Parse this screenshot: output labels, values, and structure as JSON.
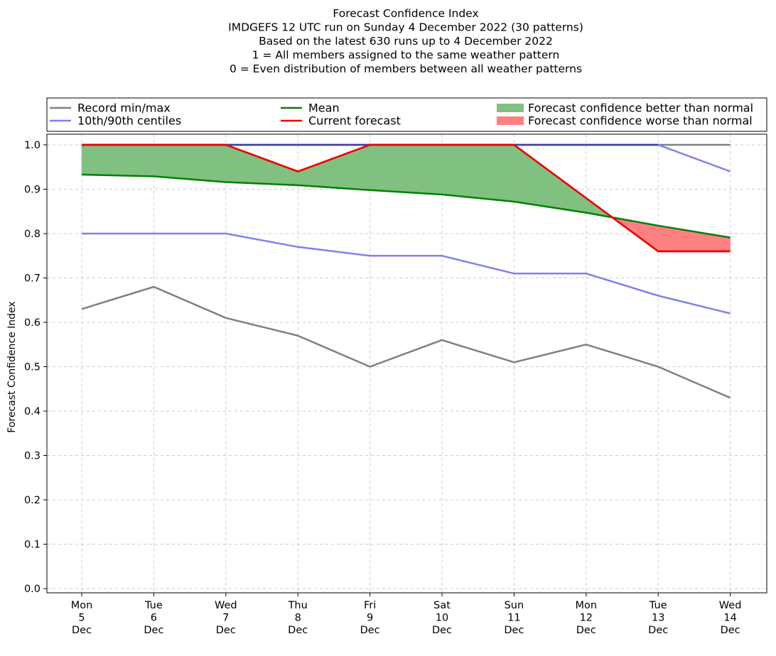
{
  "chart_data": {
    "type": "line",
    "title_lines": [
      "Forecast Confidence Index",
      "IMDGEFS 12 UTC run on Sunday 4 December 2022 (30 patterns)",
      "Based on the latest 630 runs up to 4 December 2022",
      "1 = All members assigned to the same weather pattern",
      "0 = Even distribution of members between all weather patterns"
    ],
    "ylabel": "Forecast Confidence Index",
    "ylim": [
      0,
      1
    ],
    "yticks": [
      "0.0",
      "0.1",
      "0.2",
      "0.3",
      "0.4",
      "0.5",
      "0.6",
      "0.7",
      "0.8",
      "0.9",
      "1.0"
    ],
    "categories": [
      [
        "Mon",
        "5",
        "Dec"
      ],
      [
        "Tue",
        "6",
        "Dec"
      ],
      [
        "Wed",
        "7",
        "Dec"
      ],
      [
        "Thu",
        "8",
        "Dec"
      ],
      [
        "Fri",
        "9",
        "Dec"
      ],
      [
        "Sat",
        "10",
        "Dec"
      ],
      [
        "Sun",
        "11",
        "Dec"
      ],
      [
        "Mon",
        "12",
        "Dec"
      ],
      [
        "Tue",
        "13",
        "Dec"
      ],
      [
        "Wed",
        "14",
        "Dec"
      ]
    ],
    "grid": true,
    "legend": {
      "placement": "top",
      "entries": [
        {
          "label": "Record min/max",
          "color": "#808080",
          "kind": "line"
        },
        {
          "label": "10th/90th centiles",
          "color": "#8080f0",
          "kind": "line"
        },
        {
          "label": "Mean",
          "color": "#008000",
          "kind": "line"
        },
        {
          "label": "Current forecast",
          "color": "#ee0000",
          "kind": "line"
        },
        {
          "label": "Forecast confidence better than normal",
          "color": "#80c080",
          "kind": "patch"
        },
        {
          "label": "Forecast confidence worse than normal",
          "color": "#ff8080",
          "kind": "patch"
        }
      ]
    },
    "series": [
      {
        "name": "Record min/max",
        "role": "record_max",
        "color": "#808080",
        "values": [
          1.0,
          1.0,
          1.0,
          1.0,
          1.0,
          1.0,
          1.0,
          1.0,
          1.0,
          1.0
        ]
      },
      {
        "name": "Record min/max",
        "role": "record_min",
        "color": "#808080",
        "values": [
          0.63,
          0.68,
          0.61,
          0.57,
          0.5,
          0.56,
          0.51,
          0.55,
          0.5,
          0.43
        ]
      },
      {
        "name": "10th/90th centiles",
        "role": "p90",
        "color": "#8080f0",
        "values": [
          1.0,
          1.0,
          1.0,
          1.0,
          1.0,
          1.0,
          1.0,
          1.0,
          1.0,
          0.94
        ]
      },
      {
        "name": "10th/90th centiles",
        "role": "p10",
        "color": "#8080f0",
        "values": [
          0.8,
          0.8,
          0.8,
          0.77,
          0.75,
          0.75,
          0.71,
          0.71,
          0.66,
          0.62
        ]
      },
      {
        "name": "Mean",
        "role": "mean",
        "color": "#008000",
        "values": [
          0.933,
          0.929,
          0.916,
          0.909,
          0.898,
          0.888,
          0.872,
          0.847,
          0.818,
          0.791
        ]
      },
      {
        "name": "Current forecast",
        "role": "current",
        "color": "#ee0000",
        "values": [
          1.0,
          1.0,
          1.0,
          0.94,
          1.0,
          1.0,
          1.0,
          0.88,
          0.76,
          0.76
        ]
      }
    ],
    "fill_colors": {
      "better": "#80c080",
      "worse": "#ff8080"
    }
  }
}
